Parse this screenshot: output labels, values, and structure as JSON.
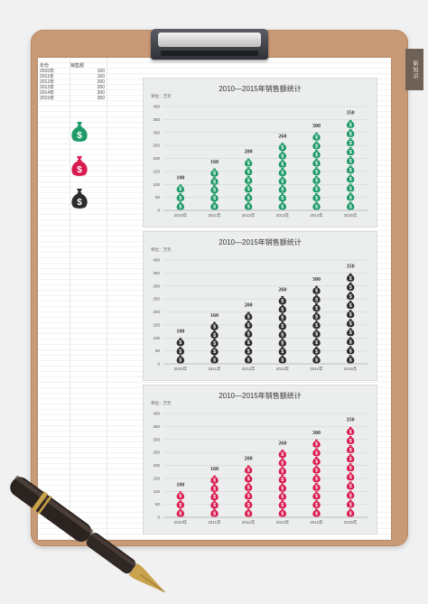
{
  "stamp": "新知识",
  "table": {
    "headers": [
      "年份",
      "销售额"
    ],
    "rows": [
      {
        "year": "2010年",
        "value": "100"
      },
      {
        "year": "2011年",
        "value": "160"
      },
      {
        "year": "2012年",
        "value": "200"
      },
      {
        "year": "2013年",
        "value": "260"
      },
      {
        "year": "2014年",
        "value": "300"
      },
      {
        "year": "2015年",
        "value": "350"
      }
    ]
  },
  "legend_icons": [
    {
      "name": "money-bag-green-icon",
      "color": "#1e9a68"
    },
    {
      "name": "money-bag-red-icon",
      "color": "#d81b4f"
    },
    {
      "name": "money-bag-black-icon",
      "color": "#2b2b2b"
    }
  ],
  "chart_data": [
    {
      "type": "bar",
      "title": "2010—2015年销售额统计",
      "unit_label": "单位：万元",
      "categories": [
        "2010年",
        "2011年",
        "2012年",
        "2013年",
        "2014年",
        "2015年"
      ],
      "values": [
        100,
        160,
        200,
        260,
        300,
        350
      ],
      "ylim": [
        0,
        400
      ],
      "yticks": [
        0,
        50,
        100,
        150,
        200,
        250,
        300,
        350,
        400
      ],
      "color": "#1e9a68",
      "grid": true
    },
    {
      "type": "bar",
      "title": "2010—2015年销售额统计",
      "unit_label": "单位：万元",
      "categories": [
        "2010年",
        "2011年",
        "2012年",
        "2013年",
        "2014年",
        "2015年"
      ],
      "values": [
        100,
        160,
        200,
        260,
        300,
        350
      ],
      "ylim": [
        0,
        400
      ],
      "yticks": [
        0,
        50,
        100,
        150,
        200,
        250,
        300,
        350,
        400
      ],
      "color": "#2b2b2b",
      "grid": true
    },
    {
      "type": "bar",
      "title": "2010—2015年销售额统计",
      "unit_label": "单位：万元",
      "categories": [
        "2010年",
        "2011年",
        "2012年",
        "2013年",
        "2014年",
        "2015年"
      ],
      "values": [
        100,
        160,
        200,
        260,
        300,
        350
      ],
      "ylim": [
        0,
        400
      ],
      "yticks": [
        0,
        50,
        100,
        150,
        200,
        250,
        300,
        350,
        400
      ],
      "color": "#d81b4f",
      "grid": true
    }
  ]
}
